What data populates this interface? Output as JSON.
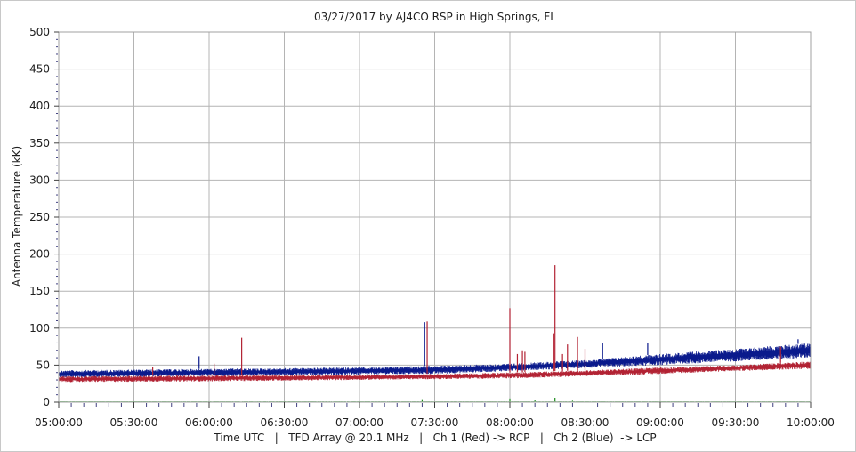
{
  "chart_data": {
    "type": "line",
    "title": "03/27/2017  by  AJ4CO RSP  in  High Springs, FL",
    "ylabel": "Antenna Temperature (kK)",
    "xlabel": "Time UTC   |   TFD Array @ 20.1 MHz   |   Ch 1 (Red) -> RCP   |   Ch 2 (Blue)  -> LCP",
    "ylim": [
      0,
      500
    ],
    "yticks": [
      0,
      50,
      100,
      150,
      200,
      250,
      300,
      350,
      400,
      450,
      500
    ],
    "xlim": [
      "05:00:00",
      "10:00:00"
    ],
    "xticks": [
      "05:00:00",
      "05:30:00",
      "06:00:00",
      "06:30:00",
      "07:00:00",
      "07:30:00",
      "08:00:00",
      "08:30:00",
      "09:00:00",
      "09:30:00",
      "10:00:00"
    ],
    "grid": true,
    "colors": {
      "ch1": "#b22233",
      "ch2": "#0a1a8c",
      "ch3": "#1a8a1a",
      "grid": "#b4b4b4"
    },
    "series": [
      {
        "name": "Ch 1 (Red) -> RCP",
        "color": "#b22233",
        "baseline": {
          "x": [
            "05:00:00",
            "06:00:00",
            "07:00:00",
            "07:30:00",
            "08:00:00",
            "08:30:00",
            "09:00:00",
            "09:30:00",
            "10:00:00"
          ],
          "low": [
            27,
            28,
            30,
            31,
            32,
            35,
            38,
            42,
            45
          ],
          "high": [
            35,
            36,
            37,
            38,
            40,
            43,
            47,
            50,
            55
          ]
        },
        "spikes": [
          {
            "x": "05:37:30",
            "y": 47
          },
          {
            "x": "06:02:00",
            "y": 52
          },
          {
            "x": "06:13:00",
            "y": 87
          },
          {
            "x": "07:27:00",
            "y": 109
          },
          {
            "x": "08:00:00",
            "y": 127
          },
          {
            "x": "08:03:00",
            "y": 65
          },
          {
            "x": "08:05:00",
            "y": 70
          },
          {
            "x": "08:06:00",
            "y": 68
          },
          {
            "x": "08:18:00",
            "y": 185
          },
          {
            "x": "08:17:30",
            "y": 93
          },
          {
            "x": "08:21:00",
            "y": 65
          },
          {
            "x": "08:23:00",
            "y": 78
          },
          {
            "x": "08:27:00",
            "y": 88
          },
          {
            "x": "08:30:00",
            "y": 72
          },
          {
            "x": "09:48:00",
            "y": 75
          }
        ]
      },
      {
        "name": "Ch 2 (Blue) -> LCP",
        "color": "#0a1a8c",
        "baseline": {
          "x": [
            "05:00:00",
            "06:00:00",
            "07:00:00",
            "07:30:00",
            "08:00:00",
            "08:30:00",
            "09:00:00",
            "09:30:00",
            "10:00:00"
          ],
          "low": [
            33,
            35,
            37,
            38,
            42,
            46,
            50,
            55,
            60
          ],
          "high": [
            43,
            45,
            47,
            49,
            52,
            57,
            65,
            72,
            80
          ]
        },
        "spikes": [
          {
            "x": "05:56:00",
            "y": 62
          },
          {
            "x": "07:26:00",
            "y": 108
          },
          {
            "x": "08:37:00",
            "y": 80
          },
          {
            "x": "08:55:00",
            "y": 80
          },
          {
            "x": "09:55:00",
            "y": 85
          }
        ]
      },
      {
        "name": "",
        "color": "#1a8a1a",
        "baseline": {
          "x": [
            "05:00:00",
            "10:00:00"
          ],
          "low": [
            0,
            0
          ],
          "high": [
            1,
            1
          ]
        },
        "spikes": [
          {
            "x": "07:25:00",
            "y": 4
          },
          {
            "x": "08:00:00",
            "y": 5
          },
          {
            "x": "08:10:00",
            "y": 3
          },
          {
            "x": "08:18:00",
            "y": 6
          },
          {
            "x": "08:25:00",
            "y": 2
          }
        ]
      }
    ]
  }
}
